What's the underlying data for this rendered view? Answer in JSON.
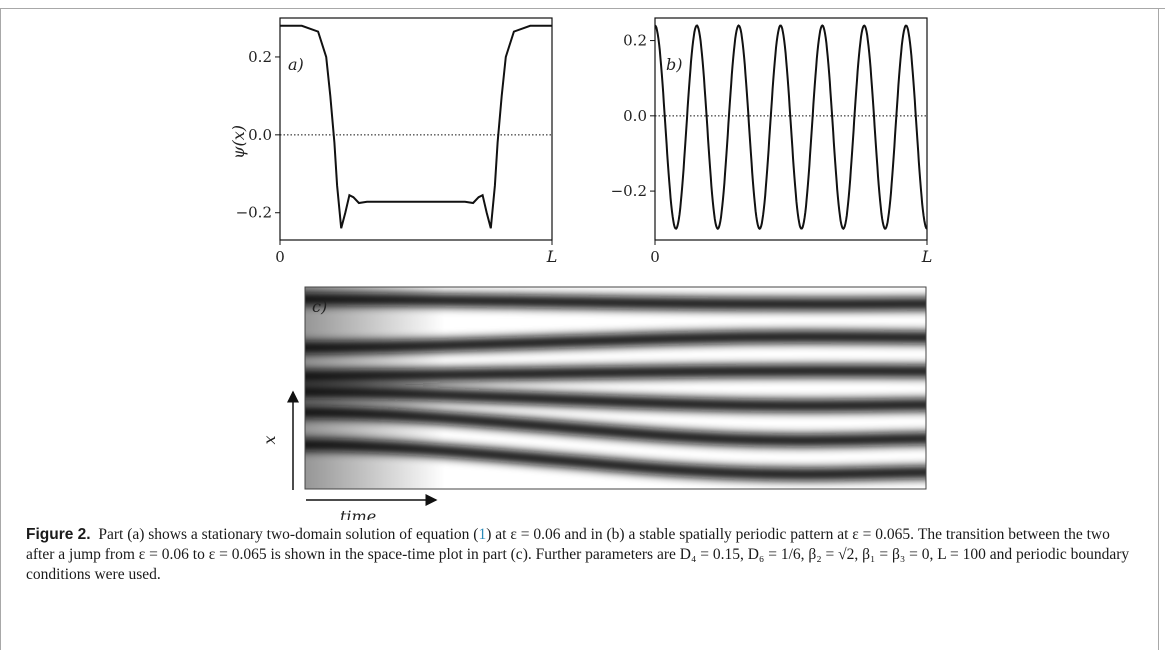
{
  "chart_data": [
    {
      "type": "line",
      "panel": "a)",
      "ylabel": "ψ(x)",
      "xticks": [
        "0",
        "L"
      ],
      "yticks": [
        "0.2",
        "0.0",
        "−0.2"
      ],
      "ylim": [
        -0.27,
        0.3
      ],
      "baseline": 0.0,
      "series": [
        {
          "x": [
            0,
            0.08,
            0.14,
            0.17,
            0.185,
            0.2,
            0.21,
            0.225,
            0.24,
            0.255,
            0.27,
            0.29,
            0.32,
            0.5,
            0.68,
            0.71,
            0.73,
            0.745,
            0.76,
            0.775,
            0.79,
            0.8,
            0.815,
            0.83,
            0.86,
            0.92,
            1.0
          ],
          "y": [
            0.28,
            0.28,
            0.265,
            0.2,
            0.1,
            -0.02,
            -0.13,
            -0.24,
            -0.2,
            -0.155,
            -0.16,
            -0.175,
            -0.172,
            -0.172,
            -0.172,
            -0.175,
            -0.16,
            -0.155,
            -0.2,
            -0.24,
            -0.13,
            -0.02,
            0.1,
            0.2,
            0.265,
            0.28,
            0.28
          ]
        }
      ]
    },
    {
      "type": "line",
      "panel": "b)",
      "xticks": [
        "0",
        "L"
      ],
      "yticks": [
        "0.2",
        "0.0",
        "−0.2"
      ],
      "ylim": [
        -0.33,
        0.26
      ],
      "baseline": 0.0,
      "periods": 6.5,
      "amplitude_max": 0.24,
      "amplitude_min": -0.3
    },
    {
      "type": "heatmap",
      "panel": "c)",
      "xlabel": "time",
      "ylabel": "x",
      "final_stripes": 6
    }
  ],
  "caption": {
    "label": "Figure 2.",
    "text_before_ref": "Part (a) shows a stationary two-domain solution of equation (",
    "ref": "1",
    "text_after_ref": ") at ε = 0.06 and in (b) a stable spatially periodic pattern at ε = 0.065. The transition between the two after a jump from ε = 0.06 to ε = 0.065 is shown in the space-time plot in part (c). Further parameters are D₄ = 0.15, D₆ = 1/6, β₂ = √2, β₁ = β₃ = 0, L = 100 and periodic boundary conditions were used."
  }
}
